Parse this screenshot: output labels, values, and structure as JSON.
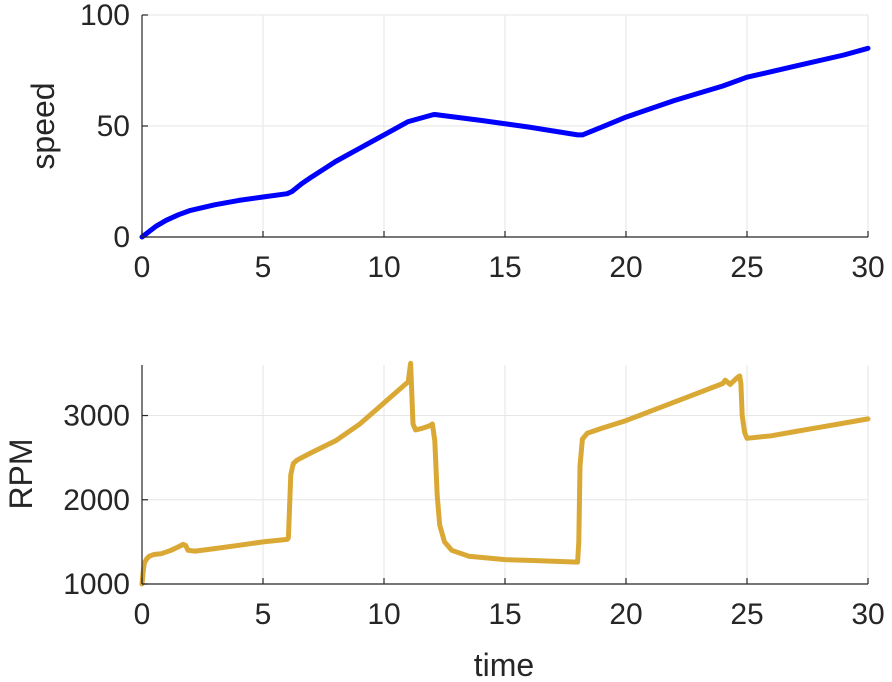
{
  "chart_data": [
    {
      "type": "line",
      "xlabel": "",
      "ylabel": "speed",
      "xlim": [
        0,
        30
      ],
      "ylim": [
        0,
        100
      ],
      "xticks": [
        0,
        5,
        10,
        15,
        20,
        25,
        30
      ],
      "yticks": [
        0,
        50,
        100
      ],
      "grid": true,
      "series": [
        {
          "color": "#0000ff",
          "x": [
            0,
            0.3,
            0.6,
            1,
            1.5,
            2,
            3,
            4,
            5,
            6,
            6.2,
            6.6,
            7,
            7.5,
            8,
            9,
            10,
            11,
            12,
            12.1,
            14,
            16,
            18,
            18.2,
            19,
            20,
            22,
            24,
            25,
            27,
            29,
            30
          ],
          "values": [
            0,
            2.5,
            5,
            7.5,
            10,
            12,
            14.5,
            16.5,
            18,
            19.5,
            20.5,
            24,
            27,
            30.5,
            34,
            40,
            46,
            52,
            55,
            55.2,
            52.5,
            49.5,
            46,
            46,
            49.5,
            54,
            61.5,
            68,
            72,
            77,
            82,
            85
          ]
        }
      ]
    },
    {
      "type": "line",
      "xlabel": "time",
      "ylabel": "RPM",
      "xlim": [
        0,
        30
      ],
      "ylim": [
        1000,
        3600
      ],
      "xticks": [
        0,
        5,
        10,
        15,
        20,
        25,
        30
      ],
      "yticks": [
        1000,
        2000,
        3000
      ],
      "grid": true,
      "series": [
        {
          "color": "#daa935",
          "x": [
            0,
            0.05,
            0.1,
            0.2,
            0.3,
            0.5,
            0.8,
            1.2,
            1.5,
            1.7,
            1.8,
            1.9,
            2.2,
            3,
            4,
            5,
            6,
            6.05,
            6.15,
            6.25,
            6.4,
            7,
            8,
            9,
            10,
            11,
            11.1,
            11.2,
            11.3,
            11.6,
            11.9,
            12,
            12.1,
            12.2,
            12.3,
            12.5,
            12.8,
            13.5,
            15,
            16,
            17,
            18,
            18.05,
            18.1,
            18.2,
            18.4,
            19,
            20,
            21,
            22,
            23,
            24,
            24.1,
            24.3,
            24.6,
            24.7,
            24.75,
            24.8,
            24.9,
            25,
            26,
            27,
            28,
            29,
            30
          ],
          "values": [
            1000,
            1150,
            1250,
            1300,
            1330,
            1350,
            1360,
            1400,
            1440,
            1470,
            1460,
            1400,
            1390,
            1420,
            1460,
            1500,
            1530,
            1550,
            2300,
            2430,
            2470,
            2560,
            2700,
            2900,
            3150,
            3400,
            3620,
            2900,
            2830,
            2850,
            2880,
            2900,
            2700,
            2050,
            1700,
            1500,
            1400,
            1330,
            1290,
            1280,
            1270,
            1260,
            1500,
            2400,
            2720,
            2790,
            2850,
            2940,
            3050,
            3160,
            3270,
            3380,
            3420,
            3370,
            3450,
            3470,
            3380,
            3000,
            2800,
            2730,
            2760,
            2810,
            2860,
            2910,
            2960
          ]
        }
      ]
    }
  ]
}
